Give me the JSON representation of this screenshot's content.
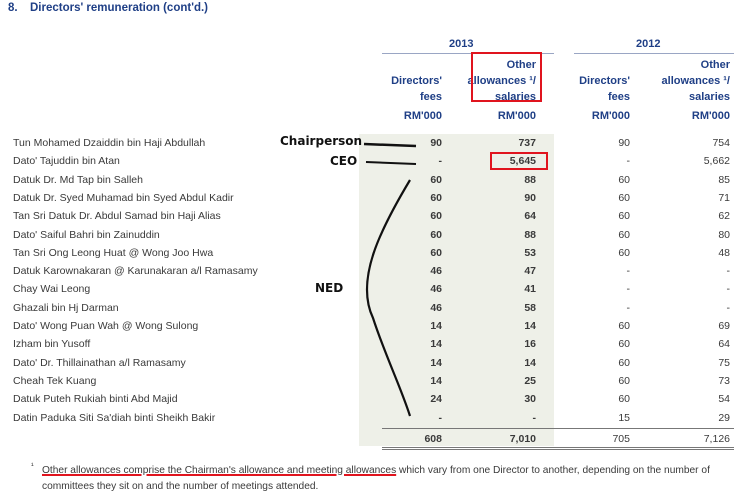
{
  "section_number": "8.",
  "section_title": "Directors' remuneration (cont'd.)",
  "years": {
    "y1": "2013",
    "y2": "2012"
  },
  "headers": {
    "fees_line1": "Directors'",
    "fees_line2": "fees",
    "fees_unit": "RM'000",
    "other_line1": "Other",
    "other_line2": "allowances ¹/",
    "other_line3": "salaries",
    "other_unit": "RM'000"
  },
  "rows": [
    {
      "name": "Tun Mohamed Dzaiddin bin Haji Abdullah",
      "f13": "90",
      "o13": "737",
      "f12": "90",
      "o12": "754"
    },
    {
      "name": "Dato' Tajuddin bin Atan",
      "f13": "-",
      "o13": "5,645",
      "f12": "-",
      "o12": "5,662"
    },
    {
      "name": "Datuk Dr. Md Tap bin Salleh",
      "f13": "60",
      "o13": "88",
      "f12": "60",
      "o12": "85"
    },
    {
      "name": "Datuk Dr. Syed Muhamad bin Syed Abdul Kadir",
      "f13": "60",
      "o13": "90",
      "f12": "60",
      "o12": "71"
    },
    {
      "name": "Tan Sri Datuk Dr. Abdul Samad bin Haji Alias",
      "f13": "60",
      "o13": "64",
      "f12": "60",
      "o12": "62"
    },
    {
      "name": "Dato' Saiful Bahri bin Zainuddin",
      "f13": "60",
      "o13": "88",
      "f12": "60",
      "o12": "80"
    },
    {
      "name": "Tan Sri Ong Leong Huat @ Wong Joo Hwa",
      "f13": "60",
      "o13": "53",
      "f12": "60",
      "o12": "48"
    },
    {
      "name": "Datuk Karownakaran @ Karunakaran a/l Ramasamy",
      "f13": "46",
      "o13": "47",
      "f12": "-",
      "o12": "-"
    },
    {
      "name": "Chay Wai Leong",
      "f13": "46",
      "o13": "41",
      "f12": "-",
      "o12": "-"
    },
    {
      "name": "Ghazali bin Hj Darman",
      "f13": "46",
      "o13": "58",
      "f12": "-",
      "o12": "-"
    },
    {
      "name": "Dato' Wong Puan Wah @ Wong Sulong",
      "f13": "14",
      "o13": "14",
      "f12": "60",
      "o12": "69"
    },
    {
      "name": "Izham bin Yusoff",
      "f13": "14",
      "o13": "16",
      "f12": "60",
      "o12": "64"
    },
    {
      "name": "Dato' Dr. Thillainathan a/l Ramasamy",
      "f13": "14",
      "o13": "14",
      "f12": "60",
      "o12": "75"
    },
    {
      "name": "Cheah Tek Kuang",
      "f13": "14",
      "o13": "25",
      "f12": "60",
      "o12": "73"
    },
    {
      "name": "Datuk Puteh Rukiah binti Abd Majid",
      "f13": "24",
      "o13": "30",
      "f12": "60",
      "o12": "54"
    },
    {
      "name": "Datin Paduka Siti Sa'diah binti Sheikh Bakir",
      "f13": "-",
      "o13": "-",
      "f12": "15",
      "o12": "29"
    }
  ],
  "totals": {
    "f13": "608",
    "o13": "7,010",
    "f12": "705",
    "o12": "7,126"
  },
  "annotations": {
    "chairperson": "Chairperson",
    "ceo": "CEO",
    "ned": "NED"
  },
  "footnote": {
    "marker": "¹",
    "underlined": "Other allowances comprise the Chairman's allowance and meeting allowances",
    "rest_line1": " which vary from one Director to another, depending on the number of",
    "line2": "committees they sit on and the number of meetings attended."
  },
  "colors": {
    "navy": "#1f3f86",
    "highlight": "#e0141e",
    "shade": "#eef0e8"
  }
}
